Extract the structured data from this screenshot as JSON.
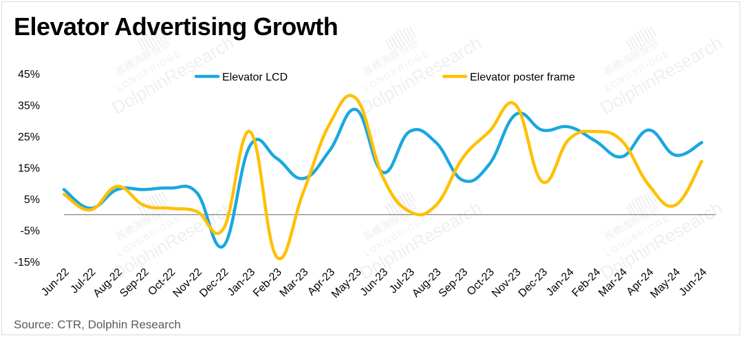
{
  "chart_data": {
    "type": "line",
    "title": "Elevator Advertising Growth",
    "categories": [
      "Jun-22",
      "Jul-22",
      "Aug-22",
      "Sep-22",
      "Oct-22",
      "Nov-22",
      "Dec-22",
      "Jan-23",
      "Feb-23",
      "Mar-23",
      "Apr-23",
      "May-23",
      "Jun-23",
      "Jul-23",
      "Aug-23",
      "Sep-23",
      "Oct-23",
      "Nov-23",
      "Dec-23",
      "Jan-24",
      "Feb-24",
      "Mar-24",
      "Apr-24",
      "May-24",
      "Jun-24"
    ],
    "series": [
      {
        "name": "Elevator LCD",
        "color": "#1aa7e0",
        "values": [
          8,
          2,
          8,
          8,
          8.5,
          7,
          -10,
          22,
          18,
          11.5,
          20.5,
          33.5,
          13.5,
          26.5,
          23,
          11,
          16,
          32,
          27,
          28,
          23.5,
          18.5,
          27,
          19,
          23
        ]
      },
      {
        "name": "Elevator poster frame",
        "color": "#ffc000",
        "values": [
          6.5,
          1.5,
          9,
          3,
          2,
          1,
          -4.5,
          26.5,
          -13.5,
          7,
          29,
          37,
          12,
          1,
          3,
          18,
          26.5,
          35,
          10.5,
          24,
          26.5,
          23.5,
          9.5,
          3,
          17
        ]
      }
    ],
    "yaxis": {
      "min": -15,
      "max": 45,
      "ticks": [
        -15,
        -5,
        5,
        15,
        25,
        35,
        45
      ],
      "suffix": "%"
    },
    "grid": false,
    "legend_position": "top"
  },
  "source": "Source: CTR,  Dolphin Research",
  "watermark": {
    "cn": "長橋海豚投研",
    "en": "LONGBRIDGE",
    "brand": "DolphinResearch"
  }
}
